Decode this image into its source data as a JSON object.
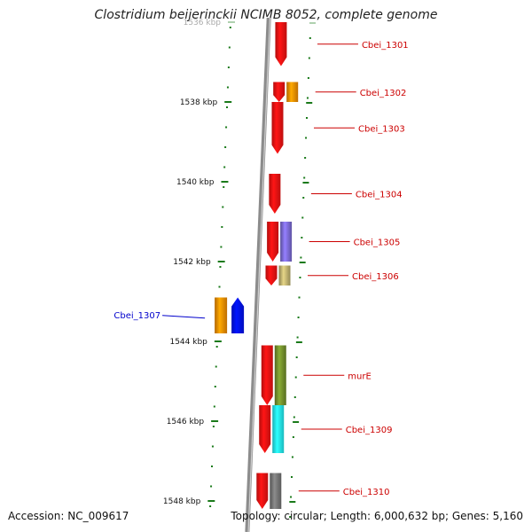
{
  "title": "Clostridium beijerinckii NCIMB 8052, complete genome",
  "footer": {
    "accession": "Accession: NC_009617",
    "topology": "Topology: circular; Length: 6,000,632 bp; Genes: 5,160"
  },
  "colors": {
    "background": "#ffffff",
    "backbone": "#8c8c8c",
    "tick": "#1a7a1a",
    "label_forward": "#cc0000",
    "label_reverse": "#0000cc",
    "gene_red": "#ee1111",
    "gene_orange": "#ee8800",
    "gene_purple": "#7766cc",
    "gene_khaki": "#b8ab6c",
    "gene_blue": "#0011ee",
    "gene_olive": "#6e8a2a",
    "gene_cyan": "#22e8ee",
    "gene_gray": "#707070"
  },
  "axis": {
    "unit": "kbp",
    "ticks": [
      {
        "pos": 1536,
        "label": "1536 kbp",
        "faded": true
      },
      {
        "pos": 1538,
        "label": "1538 kbp"
      },
      {
        "pos": 1540,
        "label": "1540 kbp"
      },
      {
        "pos": 1542,
        "label": "1542 kbp"
      },
      {
        "pos": 1544,
        "label": "1544 kbp"
      },
      {
        "pos": 1546,
        "label": "1546 kbp"
      },
      {
        "pos": 1548,
        "label": "1548 kbp"
      }
    ]
  },
  "genes": [
    {
      "label": "Cbei_1301",
      "strand": "+",
      "start": 1536.0,
      "end": 1537.1,
      "colors": [
        "gene_red"
      ]
    },
    {
      "label": "Cbei_1302",
      "strand": "+",
      "start": 1537.5,
      "end": 1538.0,
      "colors": [
        "gene_red",
        "gene_orange"
      ]
    },
    {
      "label": "Cbei_1303",
      "strand": "+",
      "start": 1538.0,
      "end": 1539.3,
      "colors": [
        "gene_red"
      ]
    },
    {
      "label": "Cbei_1304",
      "strand": "+",
      "start": 1539.8,
      "end": 1540.8,
      "colors": [
        "gene_red"
      ]
    },
    {
      "label": "Cbei_1305",
      "strand": "+",
      "start": 1541.0,
      "end": 1542.0,
      "colors": [
        "gene_red",
        "gene_purple"
      ]
    },
    {
      "label": "Cbei_1306",
      "strand": "+",
      "start": 1542.1,
      "end": 1542.6,
      "colors": [
        "gene_red",
        "gene_khaki"
      ]
    },
    {
      "label": "Cbei_1307",
      "strand": "-",
      "start": 1542.9,
      "end": 1543.8,
      "colors": [
        "gene_orange",
        "gene_blue"
      ]
    },
    {
      "label": "murE",
      "strand": "+",
      "start": 1544.1,
      "end": 1545.6,
      "colors": [
        "gene_red",
        "gene_olive"
      ]
    },
    {
      "label": "Cbei_1309",
      "strand": "+",
      "start": 1545.6,
      "end": 1546.8,
      "colors": [
        "gene_red",
        "gene_cyan"
      ]
    },
    {
      "label": "Cbei_1310",
      "strand": "+",
      "start": 1547.3,
      "end": 1548.2,
      "colors": [
        "gene_red",
        "gene_gray"
      ]
    }
  ]
}
